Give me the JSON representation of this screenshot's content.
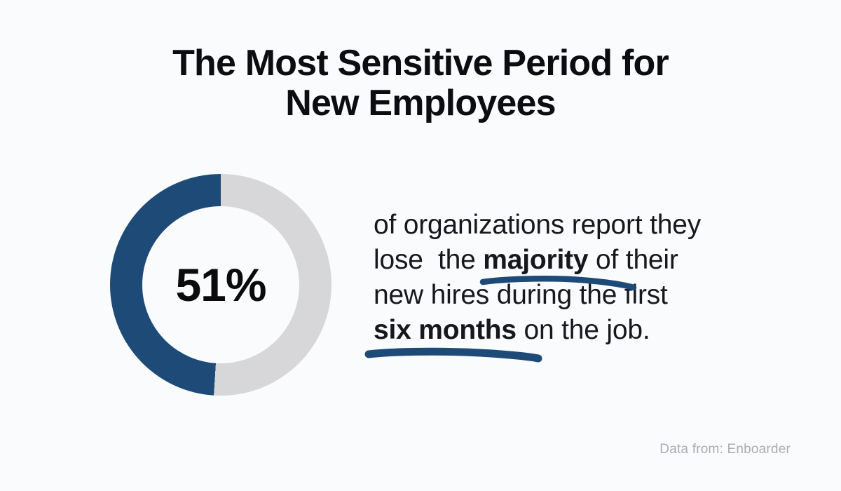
{
  "accent_color": "#1d4a77",
  "page_background": "#fafbfd",
  "title": {
    "lines": [
      "The Most Sensitive Period for",
      "New Employees"
    ]
  },
  "donut": {
    "center_label": "51%"
  },
  "chart_data": {
    "type": "pie",
    "subtype": "donut",
    "title": "The Most Sensitive Period for New Employees",
    "categories": [
      "organizations that lose the majority of new hires in the first six months",
      "other organizations"
    ],
    "values": [
      51,
      49
    ],
    "colors": [
      "#1d4a77",
      "#d7d7d9"
    ],
    "center_label": "51%",
    "legend": "none",
    "start_angle_deg": 0,
    "track_sweep_clockwise": true
  },
  "statement": {
    "segments": [
      {
        "text": "of organizations report they\nlose  the ",
        "bold": false
      },
      {
        "text": "majority",
        "bold": true
      },
      {
        "text": " of their\nnew hires during the first\n",
        "bold": false
      },
      {
        "text": "six months",
        "bold": true
      },
      {
        "text": " on the job.",
        "bold": false
      }
    ]
  },
  "source": {
    "label": "Data from: Enboarder"
  }
}
